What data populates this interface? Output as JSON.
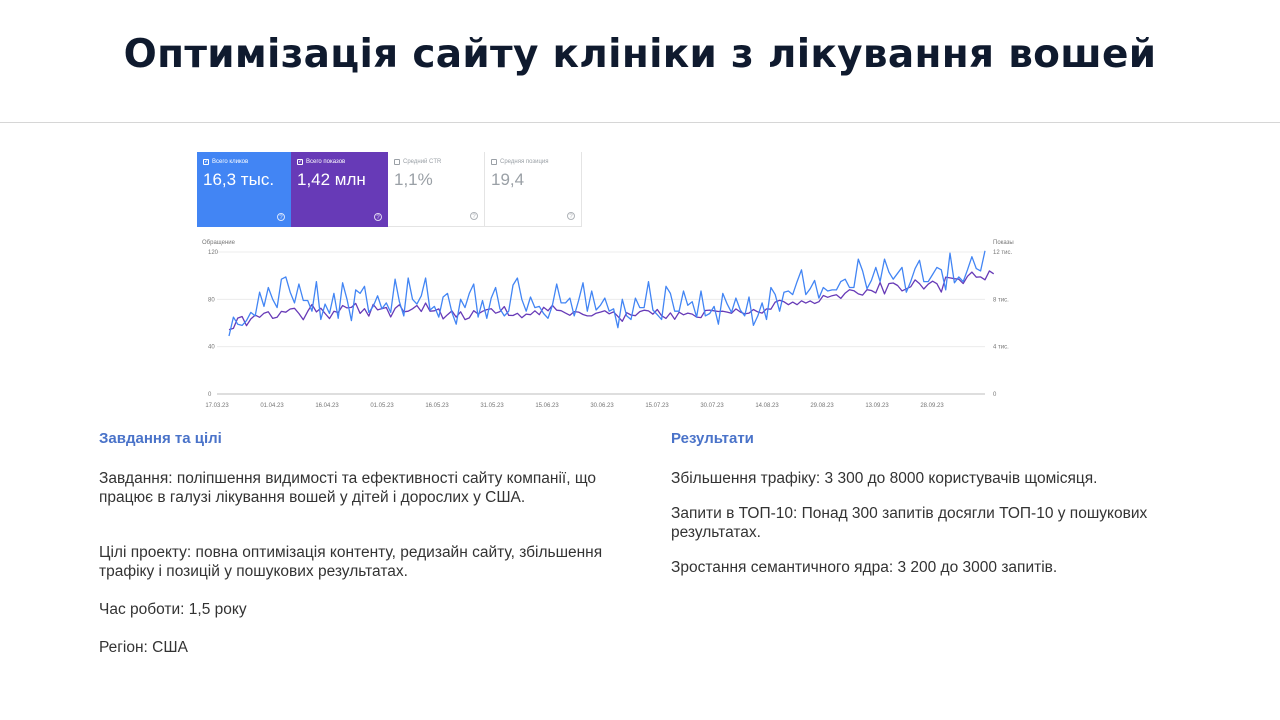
{
  "title": "Оптимізація сайту клініки з лікування вошей",
  "metrics": [
    {
      "label": "Всего кликов",
      "value": "16,3 тыс.",
      "color": "#4285f4",
      "checked": true
    },
    {
      "label": "Всего показов",
      "value": "1,42 млн",
      "color": "#673ab7",
      "checked": true
    },
    {
      "label": "Средний CTR",
      "value": "1,1%",
      "checked": false
    },
    {
      "label": "Средняя позиция",
      "value": "19,4",
      "checked": false
    }
  ],
  "left": {
    "heading": "Завдання та цілі",
    "p1": "Завдання: поліпшення видимості та ефективності сайту компанії, що працює в галузі лікування вошей у дітей і дорослих у США.",
    "p2": "Цілі проекту: повна оптимізація контенту, редизайн сайту, збільшення трафіку і позицій у пошукових результатах.",
    "p3": "Час роботи: 1,5 року",
    "p4": "Регіон: США"
  },
  "right": {
    "heading": "Результати",
    "p1": "Збільшення трафіку: 3 300 до 8000 користувачів щомісяця.",
    "p2": "Запити в ТОП-10: Понад 300 запитів досягли ТОП-10 у пошукових результатах.",
    "p3": "Зростання семантичного ядра: 3 200 до 3000 запитів."
  },
  "chart_data": {
    "type": "line",
    "y_left_label": "Обращение",
    "y_right_label": "Показы",
    "y_left_ticks": [
      "0",
      "40",
      "80",
      "120"
    ],
    "y_right_ticks": [
      "0",
      "4 тис.",
      "8 тис.",
      "12 тис."
    ],
    "ylim_left": [
      0,
      120
    ],
    "ylim_right": [
      0,
      12000
    ],
    "x_ticks": [
      "17.03.23",
      "01.04.23",
      "16.04.23",
      "01.05.23",
      "16.05.23",
      "31.05.23",
      "15.06.23",
      "30.06.23",
      "15.07.23",
      "30.07.23",
      "14.08.23",
      "29.08.23",
      "13.09.23",
      "28.09.23"
    ],
    "grid": true,
    "series": [
      {
        "name": "Всего кликов",
        "axis": "left",
        "color": "#4285f4",
        "values": [
          49,
          65,
          59,
          58,
          62,
          69,
          66,
          86,
          74,
          90,
          80,
          73,
          97,
          99,
          86,
          77,
          93,
          79,
          79,
          70,
          95,
          63,
          76,
          68,
          85,
          64,
          94,
          80,
          62,
          88,
          85,
          91,
          69,
          74,
          83,
          72,
          77,
          69,
          97,
          78,
          66,
          98,
          80,
          76,
          83,
          98,
          71,
          74,
          65,
          82,
          85,
          69,
          59,
          80,
          73,
          85,
          93,
          65,
          79,
          64,
          81,
          90,
          72,
          66,
          70,
          92,
          98,
          80,
          70,
          82,
          73,
          74,
          68,
          64,
          75,
          93,
          77,
          77,
          81,
          66,
          79,
          94,
          70,
          87,
          71,
          75,
          81,
          70,
          72,
          56,
          80,
          66,
          63,
          81,
          73,
          73,
          95,
          71,
          67,
          63,
          91,
          85,
          70,
          70,
          87,
          75,
          78,
          65,
          87,
          66,
          68,
          74,
          59,
          85,
          76,
          69,
          81,
          71,
          66,
          82,
          58,
          66,
          77,
          63,
          90,
          84,
          70,
          86,
          87,
          84,
          95,
          105,
          84,
          89,
          96,
          81,
          90,
          87,
          88,
          88,
          95,
          97,
          90,
          90,
          114,
          104,
          89,
          96,
          107,
          95,
          114,
          103,
          97,
          102,
          107,
          86,
          95,
          106,
          113,
          95,
          95,
          101,
          107,
          105,
          88,
          119,
          94,
          99,
          95,
          105,
          116,
          106,
          104,
          121
        ]
      },
      {
        "name": "Всего показов",
        "axis": "right",
        "color": "#673ab7",
        "values": [
          5440,
          5540,
          6410,
          6550,
          5770,
          6340,
          6670,
          6480,
          6830,
          6950,
          6390,
          6490,
          6980,
          6910,
          7180,
          7240,
          6800,
          6280,
          6980,
          7560,
          6940,
          7250,
          6800,
          6370,
          6990,
          6890,
          7470,
          7280,
          7320,
          7660,
          6810,
          7210,
          6580,
          7570,
          7110,
          7220,
          7310,
          6510,
          7230,
          7550,
          6950,
          7000,
          7200,
          7480,
          6970,
          7680,
          7000,
          7030,
          7190,
          6350,
          6700,
          7020,
          6500,
          6950,
          6290,
          6430,
          7040,
          6760,
          6990,
          7130,
          7210,
          6830,
          6960,
          7390,
          6650,
          6630,
          6820,
          6450,
          6750,
          6700,
          7030,
          6700,
          7330,
          7030,
          7500,
          7080,
          7040,
          6840,
          6650,
          6960,
          6920,
          6720,
          6600,
          6610,
          6830,
          6920,
          7030,
          6780,
          6940,
          6560,
          6140,
          6870,
          6680,
          6620,
          6960,
          7080,
          7020,
          6740,
          7140,
          6620,
          6390,
          6850,
          6310,
          6910,
          6690,
          6840,
          6750,
          6500,
          6460,
          7060,
          7090,
          7030,
          6970,
          7000,
          6920,
          6820,
          7190,
          6930,
          6770,
          6840,
          7140,
          6940,
          6840,
          7190,
          7170,
          7770,
          7920,
          7790,
          7550,
          7770,
          7550,
          7880,
          7680,
          7870,
          7650,
          7800,
          8320,
          8170,
          8310,
          8380,
          8080,
          8530,
          8810,
          8730,
          8460,
          8360,
          8810,
          8750,
          8540,
          9420,
          8460,
          9330,
          9380,
          9170,
          8710,
          8890,
          9060,
          9640,
          9330,
          8870,
          9280,
          9530,
          9320,
          8610,
          9880,
          9810,
          9740,
          9700,
          9330,
          9950,
          10300,
          9870,
          9900,
          9650,
          10400,
          10160
        ]
      }
    ]
  }
}
